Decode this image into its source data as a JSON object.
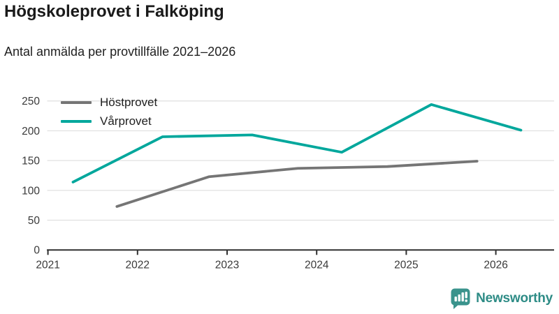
{
  "chart_data": {
    "type": "line",
    "title": "Högskoleprovet i Falköping",
    "subtitle": "Antal anmälda per provtillfälle 2021–2026",
    "xlabel": "",
    "ylabel": "",
    "xlim": [
      2021,
      2026.67
    ],
    "ylim": [
      0,
      250
    ],
    "x_ticks": [
      2021,
      2022,
      2023,
      2024,
      2025,
      2026
    ],
    "y_ticks": [
      0,
      50,
      100,
      150,
      200,
      250
    ],
    "grid": "horizontal",
    "legend_position": "top-left",
    "series": [
      {
        "name": "Höstprovet",
        "color": "#757575",
        "x": [
          2021.77,
          2022.8,
          2023.79,
          2024.79,
          2025.79
        ],
        "values": [
          73,
          123,
          137,
          140,
          149
        ]
      },
      {
        "name": "Vårprovet",
        "color": "#00a79c",
        "x": [
          2021.28,
          2022.28,
          2023.28,
          2024.28,
          2025.28,
          2026.28
        ],
        "values": [
          114,
          190,
          193,
          164,
          244,
          201
        ]
      }
    ]
  },
  "footer": {
    "brand": "Newsworthy",
    "brand_color": "#2e8c86",
    "icon": "bar-chart-speech-bubble-icon"
  }
}
